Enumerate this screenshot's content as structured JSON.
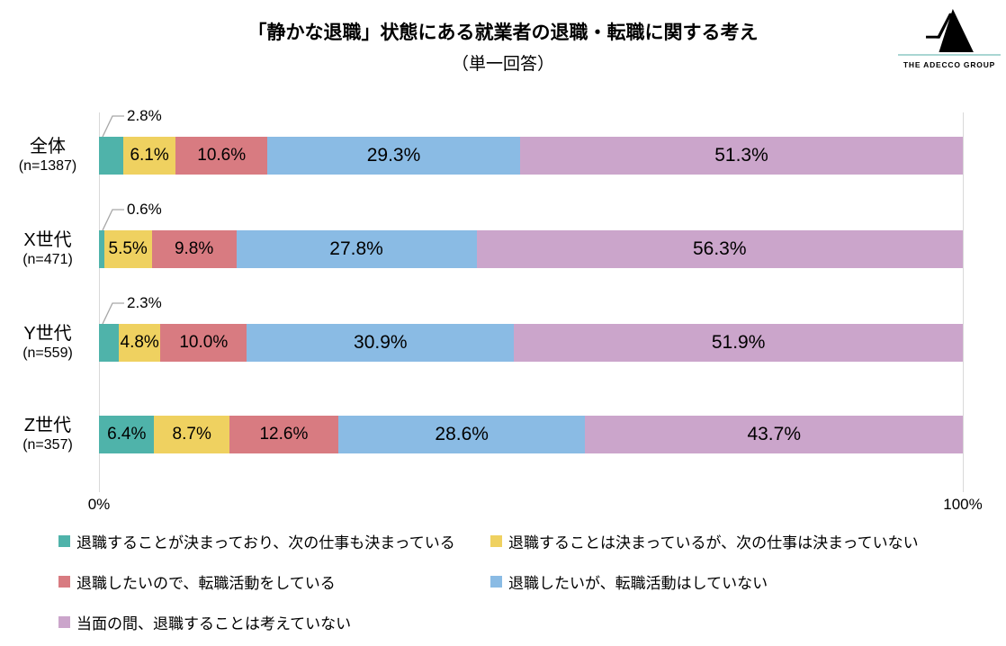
{
  "logo": {
    "text": "THE ADECCO GROUP",
    "line_color": "#A9D6D3",
    "mark_color": "#000000"
  },
  "chart_data": {
    "type": "bar",
    "orientation": "horizontal",
    "stacked": true,
    "title": "「静かな退職」状態にある就業者の退職・転職に関する考え",
    "subtitle": "（単一回答）",
    "unit": "%",
    "xlim": [
      0,
      100
    ],
    "x_ticks": [
      "0%",
      "100%"
    ],
    "grid": false,
    "legend_position": "bottom",
    "categories": [
      "全体",
      "X世代",
      "Y世代",
      "Z世代"
    ],
    "category_sublabels": [
      "(n=1387)",
      "(n=471)",
      "(n=559)",
      "(n=357)"
    ],
    "series": [
      {
        "name": "退職することが決まっており、次の仕事も決まっている",
        "color": "#4FB3AA",
        "values": [
          2.8,
          0.6,
          2.3,
          6.4
        ]
      },
      {
        "name": "退職することは決まっているが、次の仕事は決まっていない",
        "color": "#EFD160",
        "values": [
          6.1,
          5.5,
          4.8,
          8.7
        ]
      },
      {
        "name": "退職したいので、転職活動をしている",
        "color": "#D87B81",
        "values": [
          10.6,
          9.8,
          10.0,
          12.6
        ]
      },
      {
        "name": "退職したいが、転職活動はしていない",
        "color": "#8ABBE4",
        "values": [
          29.3,
          27.8,
          30.9,
          28.6
        ]
      },
      {
        "name": "当面の間、退職することは考えていない",
        "color": "#CBA5CB",
        "values": [
          51.3,
          56.3,
          51.9,
          43.7
        ]
      }
    ],
    "labels": [
      [
        "2.8%",
        "6.1%",
        "10.6%",
        "29.3%",
        "51.3%"
      ],
      [
        "0.6%",
        "5.5%",
        "9.8%",
        "27.8%",
        "56.3%"
      ],
      [
        "2.3%",
        "4.8%",
        "10.0%",
        "30.9%",
        "51.9%"
      ],
      [
        "6.4%",
        "8.7%",
        "12.6%",
        "28.6%",
        "43.7%"
      ]
    ],
    "callout_rows": [
      0,
      1,
      2
    ],
    "leader_line_color": "#A6A6A6"
  }
}
